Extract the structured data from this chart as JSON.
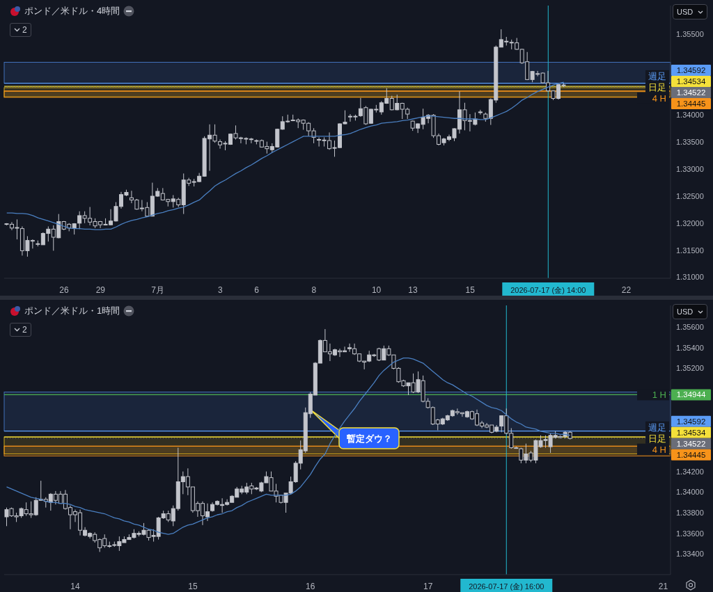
{
  "chart_data": [
    {
      "type": "candlestick",
      "title": "ポンド／米ドル・4時間",
      "annotations": [
        "2",
        "USD",
        "1.34592",
        "1.34534",
        "1.34522",
        "1.34445"
      ],
      "color": "#c3c5cc",
      "categories": [
        null,
        null,
        null,
        null,
        null,
        null,
        null,
        null,
        null,
        null,
        null,
        "26",
        null,
        null,
        null,
        null,
        null,
        null,
        "29",
        null,
        null,
        null,
        null,
        null,
        null,
        null,
        null,
        null,
        null,
        "7月",
        null,
        null,
        null,
        null,
        null,
        null,
        null,
        null,
        null,
        null,
        null,
        "3",
        null,
        null,
        null,
        null,
        null,
        null,
        "6",
        null,
        null,
        null,
        null,
        null,
        null,
        null,
        null,
        null,
        null,
        "8",
        null,
        null,
        null,
        null,
        null,
        null,
        null,
        null,
        null,
        null,
        null,
        "10",
        null,
        null,
        null,
        null,
        null,
        null,
        "13",
        null,
        null,
        null,
        null,
        null,
        null,
        null,
        null,
        null,
        null,
        "15",
        null,
        null,
        null,
        null,
        null,
        null,
        null,
        null,
        null,
        null,
        null,
        null,
        null,
        null,
        "2026-07-17 (金) 14:00",
        null,
        null,
        null,
        null,
        null,
        null,
        null,
        null,
        null,
        null,
        null,
        null,
        null,
        null,
        "22",
        null,
        null,
        null,
        null,
        null,
        null,
        null,
        null
      ],
      "ohlc": [
        [
          1.3198,
          1.32,
          1.3196,
          1.3199
        ],
        [
          1.3198,
          1.3202,
          1.3187,
          1.3191
        ],
        [
          1.3192,
          1.3207,
          1.317,
          1.3191
        ],
        [
          1.319,
          1.3194,
          1.314,
          1.3149
        ],
        [
          1.3149,
          1.3176,
          1.3138,
          1.3168
        ],
        [
          1.3168,
          1.317,
          1.3153,
          1.3167
        ],
        [
          1.3162,
          1.3168,
          1.3157,
          1.3161
        ],
        [
          1.316,
          1.3183,
          1.316,
          1.3181
        ],
        [
          1.3181,
          1.3194,
          1.3166,
          1.3189
        ],
        [
          1.3189,
          1.3196,
          1.3149,
          1.3174
        ],
        [
          1.3173,
          1.3217,
          1.3172,
          1.3203
        ],
        [
          1.3203,
          1.3204,
          1.3187,
          1.3189
        ],
        [
          1.3198,
          1.32,
          1.3185,
          1.3191
        ],
        [
          1.3191,
          1.32,
          1.3179,
          1.3199
        ],
        [
          1.32,
          1.3222,
          1.3189,
          1.3214
        ],
        [
          1.3214,
          1.3222,
          1.32,
          1.3209
        ],
        [
          1.3209,
          1.323,
          1.3196,
          1.3202
        ],
        [
          1.3203,
          1.3209,
          1.3191,
          1.3195
        ],
        [
          1.3203,
          1.3204,
          1.3191,
          1.3197
        ],
        [
          1.3197,
          1.3209,
          1.3196,
          1.3198
        ],
        [
          1.3197,
          1.3226,
          1.3196,
          1.3204
        ],
        [
          1.3204,
          1.3239,
          1.3203,
          1.3231
        ],
        [
          1.3231,
          1.3258,
          1.3227,
          1.3253
        ],
        [
          1.3252,
          1.3262,
          1.325,
          1.3257
        ],
        [
          1.3247,
          1.326,
          1.3237,
          1.3243
        ],
        [
          1.3243,
          1.3245,
          1.3225,
          1.3226
        ],
        [
          1.3228,
          1.3243,
          1.3222,
          1.3227
        ],
        [
          1.3229,
          1.3239,
          1.3212,
          1.3213
        ],
        [
          1.3213,
          1.3275,
          1.3213,
          1.325
        ],
        [
          1.325,
          1.3265,
          1.3249,
          1.3259
        ],
        [
          1.3255,
          1.3265,
          1.3242,
          1.3243
        ],
        [
          1.3244,
          1.3245,
          1.3231,
          1.324
        ],
        [
          1.324,
          1.3252,
          1.3229,
          1.3245
        ],
        [
          1.3244,
          1.3247,
          1.323,
          1.3234
        ],
        [
          1.3234,
          1.3292,
          1.3217,
          1.328
        ],
        [
          1.328,
          1.3284,
          1.3269,
          1.3274
        ],
        [
          1.3276,
          1.3282,
          1.3268,
          1.3277
        ],
        [
          1.3277,
          1.3293,
          1.3276,
          1.3287
        ],
        [
          1.3287,
          1.3361,
          1.3286,
          1.3357
        ],
        [
          1.3356,
          1.3383,
          1.3297,
          1.3363
        ],
        [
          1.3363,
          1.3383,
          1.3349,
          1.3352
        ],
        [
          1.3351,
          1.3355,
          1.3338,
          1.3345
        ],
        [
          1.3348,
          1.3352,
          1.3335,
          1.3347
        ],
        [
          1.3346,
          1.3366,
          1.3345,
          1.3365
        ],
        [
          1.3366,
          1.3381,
          1.3355,
          1.3358
        ],
        [
          1.3358,
          1.336,
          1.3348,
          1.3357
        ],
        [
          1.3357,
          1.3359,
          1.3346,
          1.3356
        ],
        [
          1.3356,
          1.3358,
          1.3348,
          1.3355
        ],
        [
          1.3353,
          1.3355,
          1.3346,
          1.3352
        ],
        [
          1.3353,
          1.3355,
          1.334,
          1.3341
        ],
        [
          1.3342,
          1.3351,
          1.3329,
          1.3338
        ],
        [
          1.3336,
          1.3348,
          1.3331,
          1.3342
        ],
        [
          1.3341,
          1.3375,
          1.334,
          1.3374
        ],
        [
          1.3374,
          1.3398,
          1.3373,
          1.3388
        ],
        [
          1.3389,
          1.3401,
          1.3386,
          1.3388
        ],
        [
          1.339,
          1.3401,
          1.3389,
          1.3391
        ],
        [
          1.3391,
          1.3394,
          1.3376,
          1.3388
        ],
        [
          1.3391,
          1.3392,
          1.3373,
          1.3385
        ],
        [
          1.3385,
          1.3387,
          1.3361,
          1.3371
        ],
        [
          1.3371,
          1.3376,
          1.3348,
          1.3359
        ],
        [
          1.3355,
          1.3359,
          1.3342,
          1.3354
        ],
        [
          1.3354,
          1.3359,
          1.3342,
          1.3353
        ],
        [
          1.3353,
          1.3368,
          1.3336,
          1.3338
        ],
        [
          1.3339,
          1.3353,
          1.3323,
          1.334
        ],
        [
          1.334,
          1.3385,
          1.3339,
          1.3384
        ],
        [
          1.3384,
          1.3409,
          1.3383,
          1.3387
        ],
        [
          1.3397,
          1.3402,
          1.3388,
          1.3398
        ],
        [
          1.3398,
          1.3401,
          1.339,
          1.3397
        ],
        [
          1.3399,
          1.3432,
          1.3397,
          1.3412
        ],
        [
          1.3414,
          1.3417,
          1.3382,
          1.3384
        ],
        [
          1.3385,
          1.3412,
          1.3384,
          1.3411
        ],
        [
          1.341,
          1.3419,
          1.3405,
          1.3411
        ],
        [
          1.3406,
          1.3426,
          1.3401,
          1.3423
        ],
        [
          1.3422,
          1.345,
          1.3421,
          1.3431
        ],
        [
          1.3431,
          1.3436,
          1.3409,
          1.341
        ],
        [
          1.341,
          1.3438,
          1.3409,
          1.3422
        ],
        [
          1.3422,
          1.3423,
          1.3393,
          1.3411
        ],
        [
          1.3411,
          1.3414,
          1.3393,
          1.3402
        ],
        [
          1.3389,
          1.339,
          1.3371,
          1.3376
        ],
        [
          1.3376,
          1.3385,
          1.3367,
          1.3384
        ],
        [
          1.3383,
          1.3412,
          1.3374,
          1.3396
        ],
        [
          1.3394,
          1.3402,
          1.3385,
          1.34
        ],
        [
          1.34,
          1.3402,
          1.3358,
          1.3362
        ],
        [
          1.3362,
          1.3366,
          1.3344,
          1.3346
        ],
        [
          1.3349,
          1.3358,
          1.3344,
          1.3356
        ],
        [
          1.3355,
          1.3364,
          1.3352,
          1.336
        ],
        [
          1.3358,
          1.3376,
          1.3352,
          1.3375
        ],
        [
          1.3374,
          1.3444,
          1.3366,
          1.341
        ],
        [
          1.341,
          1.3423,
          1.3372,
          1.339
        ],
        [
          1.339,
          1.3402,
          1.337,
          1.3389
        ],
        [
          1.3383,
          1.3405,
          1.3381,
          1.3393
        ],
        [
          1.3405,
          1.341,
          1.3401,
          1.3406
        ],
        [
          1.3402,
          1.3405,
          1.3388,
          1.3394
        ],
        [
          1.3394,
          1.3431,
          1.3382,
          1.3429
        ],
        [
          1.3428,
          1.3529,
          1.3423,
          1.3526
        ],
        [
          1.3526,
          1.3559,
          1.3526,
          1.354
        ],
        [
          1.3536,
          1.3545,
          1.3529,
          1.3537
        ],
        [
          1.3535,
          1.354,
          1.3522,
          1.3534
        ],
        [
          1.3534,
          1.3543,
          1.3521,
          1.3522
        ],
        [
          1.3522,
          1.3523,
          1.3495,
          1.3497
        ],
        [
          1.3499,
          1.3517,
          1.3465,
          1.3466
        ],
        [
          1.3466,
          1.3482,
          1.3461,
          1.3481
        ],
        [
          1.3477,
          1.3482,
          1.3472,
          1.3476
        ],
        [
          1.3478,
          1.3479,
          1.3459,
          1.346
        ],
        [
          1.346,
          1.3482,
          1.3444,
          1.3445
        ],
        [
          1.3445,
          1.3446,
          1.3428,
          1.3431
        ],
        [
          1.3431,
          1.3458,
          1.3429,
          1.3457
        ],
        [
          1.3455,
          1.3459,
          1.3452,
          1.3456
        ],
        null,
        null,
        null,
        null,
        null,
        null,
        null,
        null,
        null,
        null,
        null,
        null,
        null,
        null,
        null,
        null,
        null,
        null,
        null,
        null
      ],
      "series": [
        {
          "type": "line",
          "color": "#4a7fc1",
          "values": [
            1.3219,
            1.3219,
            1.3218,
            1.3218,
            1.3217,
            1.3214,
            1.321,
            1.3207,
            1.3204,
            1.3201,
            1.3198,
            1.3194,
            1.3191,
            1.319,
            1.319,
            1.3189,
            1.3189,
            1.3188,
            1.3188,
            1.3189,
            1.3189,
            1.3193,
            1.3198,
            1.3202,
            1.3205,
            1.3207,
            1.321,
            1.3212,
            1.3215,
            1.3218,
            1.322,
            1.3223,
            1.3225,
            1.3228,
            1.323,
            1.3234,
            1.3239,
            1.3243,
            1.3252,
            1.326,
            1.3269,
            1.3275,
            1.328,
            1.3286,
            1.3292,
            1.3297,
            1.3303,
            1.3308,
            1.3314,
            1.332,
            1.3325,
            1.3331,
            1.3336,
            1.3341,
            1.3346,
            1.3351,
            1.3356,
            1.3361,
            1.3361,
            1.3361,
            1.3361,
            1.3361,
            1.3361,
            1.3361,
            1.3363,
            1.3364,
            1.3366,
            1.337,
            1.3374,
            1.3377,
            1.338,
            1.3382,
            1.3385,
            1.3386,
            1.3387,
            1.3388,
            1.339,
            1.3391,
            1.3393,
            1.3395,
            1.3397,
            1.3399,
            1.3398,
            1.3397,
            1.3396,
            1.3395,
            1.3394,
            1.3394,
            1.3393,
            1.3393,
            1.3393,
            1.3392,
            1.3392,
            1.3395,
            1.3399,
            1.3403,
            1.3407,
            1.3413,
            1.342,
            1.3428,
            1.3433,
            1.3439,
            1.3444,
            1.3448,
            1.3452,
            1.3456,
            1.3459,
            1.3461,
            null,
            null,
            null,
            null,
            null,
            null,
            null,
            null,
            null,
            null,
            null,
            null,
            null,
            null,
            null,
            null,
            null,
            null,
            null,
            null
          ]
        }
      ],
      "ylim": [
        1.3098,
        1.3603
      ],
      "yticks": [
        {
          "value": 1.31,
          "label": "1.31000"
        },
        {
          "value": 1.315,
          "label": "1.31500"
        },
        {
          "value": 1.32,
          "label": "1.32000"
        },
        {
          "value": 1.325,
          "label": "1.32500"
        },
        {
          "value": 1.33,
          "label": "1.33000"
        },
        {
          "value": 1.335,
          "label": "1.33500"
        },
        {
          "value": 1.34,
          "label": "1.34000"
        },
        {
          "value": 1.355,
          "label": "1.35500"
        }
      ],
      "ref_lines": [
        {
          "axis": "x",
          "value": "2026-07-17 (金) 14:00",
          "color": "#22b8cf"
        },
        {
          "axis": "y",
          "value": 1.34592,
          "label": "週足",
          "color": "#5b9cf6"
        },
        {
          "axis": "y",
          "value": 1.34534,
          "label": "日足",
          "color": "#f5e03a"
        },
        {
          "axis": "y",
          "value": 1.34522,
          "color": "#6a6d78",
          "line_style": "dotted"
        },
        {
          "axis": "y",
          "value": 1.34445,
          "label": "4 H",
          "color": "#f7931a"
        }
      ],
      "bands": [
        {
          "axis": "y",
          "from": 1.34592,
          "to": 1.3498,
          "color": "#4a7fd4"
        },
        {
          "axis": "y",
          "from": 1.3434,
          "to": 1.3451,
          "color": "#f0c419"
        },
        {
          "axis": "y",
          "from": 1.3433,
          "to": 1.3445,
          "color": "#f7931a"
        }
      ]
    },
    {
      "type": "candlestick",
      "title": "ポンド／米ドル・1時間",
      "annotations": [
        "2",
        "USD",
        "1.34944",
        "1.34592",
        "1.34534",
        "1.34522",
        "1.34445",
        "暫定ダウ？"
      ],
      "color": "#c3c5cc",
      "categories": [
        null,
        null,
        null,
        null,
        null,
        null,
        null,
        null,
        null,
        null,
        null,
        null,
        null,
        null,
        "14",
        null,
        null,
        null,
        null,
        null,
        null,
        null,
        null,
        null,
        null,
        null,
        null,
        null,
        null,
        null,
        null,
        null,
        null,
        null,
        null,
        null,
        null,
        null,
        "15",
        null,
        null,
        null,
        null,
        null,
        null,
        null,
        null,
        null,
        null,
        null,
        null,
        null,
        null,
        null,
        null,
        null,
        null,
        null,
        null,
        null,
        null,
        null,
        "16",
        null,
        null,
        null,
        null,
        null,
        null,
        null,
        null,
        null,
        null,
        null,
        null,
        null,
        null,
        null,
        null,
        null,
        null,
        null,
        null,
        null,
        null,
        null,
        "17",
        null,
        null,
        null,
        null,
        null,
        null,
        null,
        null,
        null,
        null,
        null,
        null,
        null,
        null,
        null,
        "2026-07-17 (金) 16:00",
        null,
        null,
        null,
        null,
        null,
        null,
        null,
        null,
        null,
        null,
        null,
        null,
        null,
        null,
        null,
        null,
        null,
        null,
        null,
        null,
        null,
        null,
        null,
        null,
        null,
        null,
        null,
        null,
        null,
        null,
        null,
        "21",
        null
      ],
      "ohlc": [
        [
          1.3376,
          1.3385,
          1.3367,
          1.3383
        ],
        [
          1.3384,
          1.3385,
          1.3376,
          1.3377
        ],
        [
          1.3377,
          1.338,
          1.3371,
          1.3376
        ],
        [
          1.3377,
          1.3385,
          1.3375,
          1.3384
        ],
        [
          1.3383,
          1.339,
          1.3377,
          1.3379
        ],
        [
          1.3379,
          1.3391,
          1.3375,
          1.3378
        ],
        [
          1.3378,
          1.3395,
          1.3377,
          1.3392
        ],
        [
          1.3392,
          1.3411,
          1.3392,
          1.3393
        ],
        [
          1.3393,
          1.3395,
          1.3385,
          1.3391
        ],
        [
          1.339,
          1.3399,
          1.3382,
          1.3398
        ],
        [
          1.3398,
          1.3401,
          1.3388,
          1.3392
        ],
        [
          1.3398,
          1.3401,
          1.3389,
          1.3389
        ],
        [
          1.3398,
          1.3402,
          1.3383,
          1.3384
        ],
        [
          1.3385,
          1.3387,
          1.3364,
          1.3378
        ],
        [
          1.3381,
          1.3383,
          1.3371,
          1.3378
        ],
        [
          1.338,
          1.3383,
          1.3358,
          1.3363
        ],
        [
          1.3358,
          1.3366,
          1.3357,
          1.3363
        ],
        [
          1.3357,
          1.3361,
          1.3355,
          1.336
        ],
        [
          1.3359,
          1.3361,
          1.3351,
          1.3353
        ],
        [
          1.3354,
          1.3355,
          1.3342,
          1.3346
        ],
        [
          1.3355,
          1.3359,
          1.3346,
          1.3348
        ],
        [
          1.3348,
          1.3352,
          1.3346,
          1.3348
        ],
        [
          1.3349,
          1.3352,
          1.3347,
          1.3349
        ],
        [
          1.3348,
          1.3357,
          1.3343,
          1.3352
        ],
        [
          1.3351,
          1.3357,
          1.3351,
          1.3354
        ],
        [
          1.3354,
          1.3359,
          1.3354,
          1.3356
        ],
        [
          1.3356,
          1.3364,
          1.3355,
          1.336
        ],
        [
          1.3359,
          1.3362,
          1.3357,
          1.336
        ],
        [
          1.3359,
          1.337,
          1.3358,
          1.3363
        ],
        [
          1.3363,
          1.3364,
          1.3353,
          1.3356
        ],
        [
          1.3357,
          1.3364,
          1.3352,
          1.3358
        ],
        [
          1.3357,
          1.3376,
          1.3354,
          1.3375
        ],
        [
          1.3375,
          1.3382,
          1.3374,
          1.3379
        ],
        [
          1.3379,
          1.3382,
          1.3371,
          1.3373
        ],
        [
          1.3372,
          1.3387,
          1.3367,
          1.3384
        ],
        [
          1.3384,
          1.3443,
          1.3382,
          1.341
        ],
        [
          1.341,
          1.342,
          1.3398,
          1.3415
        ],
        [
          1.3415,
          1.3423,
          1.3397,
          1.3405
        ],
        [
          1.3405,
          1.3405,
          1.338,
          1.3382
        ],
        [
          1.3389,
          1.3391,
          1.3376,
          1.3382
        ],
        [
          1.3389,
          1.3391,
          1.3368,
          1.3377
        ],
        [
          1.3376,
          1.3389,
          1.3372,
          1.3381
        ],
        [
          1.3382,
          1.339,
          1.3381,
          1.3388
        ],
        [
          1.3388,
          1.3392,
          1.3387,
          1.3391
        ],
        [
          1.3387,
          1.3394,
          1.338,
          1.3388
        ],
        [
          1.3388,
          1.3393,
          1.3387,
          1.339
        ],
        [
          1.339,
          1.3397,
          1.339,
          1.3396
        ],
        [
          1.3395,
          1.3405,
          1.3395,
          1.3403
        ],
        [
          1.34,
          1.3406,
          1.3398,
          1.3403
        ],
        [
          1.34,
          1.3409,
          1.3398,
          1.3405
        ],
        [
          1.3406,
          1.3409,
          1.3398,
          1.3403
        ],
        [
          1.3403,
          1.3405,
          1.3402,
          1.3404
        ],
        [
          1.3401,
          1.341,
          1.34,
          1.3409
        ],
        [
          1.3409,
          1.342,
          1.3409,
          1.3415
        ],
        [
          1.3414,
          1.342,
          1.3401,
          1.3401
        ],
        [
          1.3401,
          1.3408,
          1.339,
          1.3396
        ],
        [
          1.3397,
          1.3397,
          1.3389,
          1.339
        ],
        [
          1.339,
          1.3399,
          1.338,
          1.3399
        ],
        [
          1.3399,
          1.3415,
          1.3398,
          1.341
        ],
        [
          1.341,
          1.343,
          1.3409,
          1.3428
        ],
        [
          1.3428,
          1.345,
          1.3422,
          1.3441
        ],
        [
          1.344,
          1.3482,
          1.3438,
          1.3477
        ],
        [
          1.3476,
          1.3497,
          1.3472,
          1.3495
        ],
        [
          1.3494,
          1.3526,
          1.3494,
          1.3525
        ],
        [
          1.3525,
          1.3548,
          1.3525,
          1.3547
        ],
        [
          1.3547,
          1.3558,
          1.3536,
          1.3536
        ],
        [
          1.3536,
          1.3544,
          1.3527,
          1.3534
        ],
        [
          1.3533,
          1.3539,
          1.3532,
          1.3538
        ],
        [
          1.3537,
          1.3539,
          1.3531,
          1.3536
        ],
        [
          1.3536,
          1.3541,
          1.3536,
          1.3537
        ],
        [
          1.3539,
          1.3544,
          1.3536,
          1.354
        ],
        [
          1.3539,
          1.3544,
          1.3533,
          1.3534
        ],
        [
          1.3534,
          1.3534,
          1.3526,
          1.3527
        ],
        [
          1.3527,
          1.3527,
          1.3519,
          1.3526
        ],
        [
          1.3527,
          1.3537,
          1.3526,
          1.3533
        ],
        [
          1.3533,
          1.3534,
          1.3531,
          1.3533
        ],
        [
          1.3539,
          1.354,
          1.3527,
          1.3528
        ],
        [
          1.3528,
          1.3542,
          1.3528,
          1.3539
        ],
        [
          1.3539,
          1.3542,
          1.3532,
          1.3533
        ],
        [
          1.3533,
          1.3533,
          1.3519,
          1.352
        ],
        [
          1.352,
          1.3521,
          1.3506,
          1.3507
        ],
        [
          1.3508,
          1.3509,
          1.3502,
          1.3503
        ],
        [
          1.3503,
          1.3506,
          1.3494,
          1.3506
        ],
        [
          1.3506,
          1.3515,
          1.3496,
          1.3497
        ],
        [
          1.3497,
          1.3517,
          1.3496,
          1.3509
        ],
        [
          1.3508,
          1.3513,
          1.3487,
          1.3488
        ],
        [
          1.3488,
          1.3491,
          1.3481,
          1.3482
        ],
        [
          1.3482,
          1.3483,
          1.3465,
          1.3466
        ],
        [
          1.347,
          1.3471,
          1.346,
          1.3466
        ],
        [
          1.3466,
          1.3472,
          1.3465,
          1.3471
        ],
        [
          1.347,
          1.3475,
          1.3469,
          1.3474
        ],
        [
          1.3474,
          1.348,
          1.3473,
          1.3479
        ],
        [
          1.3478,
          1.3481,
          1.3475,
          1.3477
        ],
        [
          1.3477,
          1.3477,
          1.3473,
          1.3476
        ],
        [
          1.3473,
          1.3479,
          1.3472,
          1.3478
        ],
        [
          1.3478,
          1.3479,
          1.347,
          1.3471
        ],
        [
          1.3476,
          1.348,
          1.3464,
          1.3465
        ],
        [
          1.3467,
          1.3469,
          1.3462,
          1.3464
        ],
        [
          1.3465,
          1.3467,
          1.3462,
          1.3463
        ],
        [
          1.3465,
          1.3465,
          1.3457,
          1.3458
        ],
        [
          1.3459,
          1.3465,
          1.3458,
          1.3463
        ],
        [
          1.3464,
          1.3474,
          1.3458,
          1.3474
        ],
        [
          1.3474,
          1.3481,
          1.3456,
          1.3457
        ],
        [
          1.3457,
          1.3462,
          1.3442,
          1.3443
        ],
        [
          1.3443,
          1.3444,
          1.3442,
          1.3443
        ],
        [
          1.3442,
          1.3443,
          1.3428,
          1.3431
        ],
        [
          1.3431,
          1.3447,
          1.3428,
          1.3437
        ],
        [
          1.3438,
          1.344,
          1.3429,
          1.3431
        ],
        [
          1.3431,
          1.3451,
          1.3428,
          1.345
        ],
        [
          1.3444,
          1.3455,
          1.3443,
          1.345
        ],
        [
          1.345,
          1.3455,
          1.3443,
          1.3451
        ],
        [
          1.3444,
          1.3457,
          1.3438,
          1.3455
        ],
        [
          1.3453,
          1.3459,
          1.3452,
          1.3455
        ],
        [
          1.3454,
          1.3455,
          1.3452,
          1.3453
        ],
        [
          1.3454,
          1.3459,
          1.3452,
          1.3458
        ],
        [
          1.3458,
          1.3459,
          1.3451,
          1.3452
        ],
        null,
        null,
        null,
        null,
        null,
        null,
        null,
        null,
        null,
        null,
        null,
        null,
        null,
        null,
        null,
        null,
        null,
        null,
        null,
        null
      ],
      "series": [
        {
          "type": "line",
          "color": "#4a7fc1",
          "values": [
            1.3405,
            1.3403,
            1.3401,
            1.3399,
            1.3397,
            1.3395,
            1.3394,
            1.3393,
            1.3391,
            1.339,
            1.339,
            1.3389,
            1.3389,
            1.3388,
            1.3386,
            1.3385,
            1.3383,
            1.3382,
            1.3381,
            1.338,
            1.3379,
            1.3377,
            1.3375,
            1.3374,
            1.3372,
            1.3371,
            1.3369,
            1.3368,
            1.3366,
            1.3364,
            1.3363,
            1.3361,
            1.336,
            1.3359,
            1.336,
            1.3363,
            1.3366,
            1.3368,
            1.3369,
            1.3371,
            1.3373,
            1.3375,
            1.3376,
            1.3378,
            1.3379,
            1.3381,
            1.3382,
            1.3385,
            1.3387,
            1.339,
            1.3392,
            1.3394,
            1.3396,
            1.3398,
            1.3397,
            1.3397,
            1.3397,
            1.3397,
            1.3398,
            1.3401,
            1.3405,
            1.3411,
            1.3417,
            1.3425,
            1.3432,
            1.3437,
            1.3447,
            1.3455,
            1.3462,
            1.3469,
            1.3475,
            1.3481,
            1.3488,
            1.3494,
            1.35,
            1.3506,
            1.3513,
            1.3518,
            1.3522,
            1.3526,
            1.3528,
            1.353,
            1.353,
            1.3529,
            1.3527,
            1.3525,
            1.3521,
            1.3517,
            1.3513,
            1.3509,
            1.3506,
            1.3504,
            1.3501,
            1.3498,
            1.3495,
            1.3493,
            1.349,
            1.3487,
            1.3484,
            1.3482,
            1.3481,
            1.3479,
            1.3475,
            1.3471,
            1.3468,
            1.3466,
            1.3463,
            1.3462,
            1.3461,
            1.3459,
            1.3458,
            1.3457,
            1.3457,
            1.3456,
            1.3456,
            1.3455,
            null,
            null,
            null,
            null,
            null,
            null,
            null,
            null,
            null,
            null,
            null,
            null,
            null,
            null,
            null,
            null,
            null,
            null,
            null,
            null
          ]
        }
      ],
      "ylim": [
        1.332,
        1.3581
      ],
      "yticks": [
        {
          "value": 1.334,
          "label": "1.33400"
        },
        {
          "value": 1.336,
          "label": "1.33600"
        },
        {
          "value": 1.338,
          "label": "1.33800"
        },
        {
          "value": 1.34,
          "label": "1.34000"
        },
        {
          "value": 1.342,
          "label": "1.34200"
        },
        {
          "value": 1.352,
          "label": "1.35200"
        },
        {
          "value": 1.354,
          "label": "1.35400"
        },
        {
          "value": 1.356,
          "label": "1.35600"
        }
      ],
      "ref_lines": [
        {
          "axis": "x",
          "value": "2026-07-17 (金) 16:00",
          "color": "#22b8cf"
        },
        {
          "axis": "y",
          "value": 1.34944,
          "label": "1 H",
          "color": "#4caf50"
        },
        {
          "axis": "y",
          "value": 1.34592,
          "label": "週足",
          "color": "#5b9cf6"
        },
        {
          "axis": "y",
          "value": 1.34534,
          "label": "日足",
          "color": "#f5e03a"
        },
        {
          "axis": "y",
          "value": 1.34522,
          "color": "#6a6d78",
          "line_style": "dotted"
        },
        {
          "axis": "y",
          "value": 1.34445,
          "label": "4 H",
          "color": "#f7931a"
        }
      ],
      "bands": [
        {
          "axis": "y",
          "from": 1.34592,
          "to": 1.3497,
          "color": "#4a7fd4"
        },
        {
          "axis": "y",
          "from": 1.3437,
          "to": 1.34534,
          "color": "#f0c419"
        },
        {
          "axis": "y",
          "from": 1.3435,
          "to": 1.34445,
          "color": "#f7931a"
        }
      ]
    }
  ]
}
